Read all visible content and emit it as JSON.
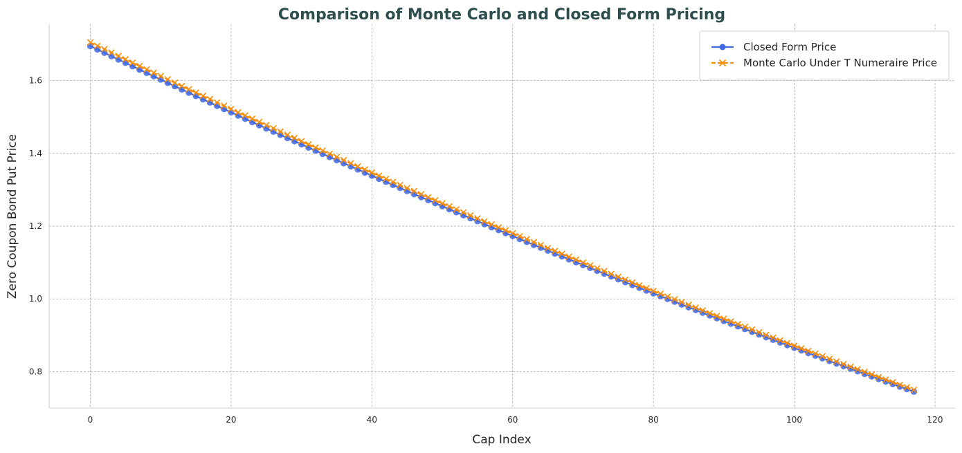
{
  "chart_data": {
    "type": "line",
    "title": "Comparison of Monte Carlo and Closed Form Pricing",
    "xlabel": "Cap Index",
    "ylabel": "Zero Coupon Bond Put Price",
    "xlim": [
      -5.85,
      122.85
    ],
    "ylim": [
      0.7,
      1.755
    ],
    "xticks": [
      0,
      20,
      40,
      60,
      80,
      100,
      120
    ],
    "yticks": [
      0.8,
      1.0,
      1.2,
      1.4,
      1.6
    ],
    "xtick_labels": [
      "0",
      "20",
      "40",
      "60",
      "80",
      "100",
      "120"
    ],
    "ytick_labels": [
      "0.8",
      "1.0",
      "1.2",
      "1.4",
      "1.6"
    ],
    "grid": true,
    "legend_position": "top-right",
    "series": [
      {
        "name": "Closed Form Price",
        "color": "#4169e1",
        "marker": "circle",
        "linestyle": "solid",
        "x_start": 0,
        "x_end": 117,
        "y_start": 1.695,
        "y_end": 0.745,
        "curve": "slightly-convex"
      },
      {
        "name": "Monte Carlo Under T Numeraire Price",
        "color": "#ff8c00",
        "marker": "x",
        "linestyle": "dashed",
        "x_start": 0,
        "x_end": 117,
        "y_start": 1.705,
        "y_end": 0.75,
        "curve": "slightly-convex"
      }
    ]
  }
}
